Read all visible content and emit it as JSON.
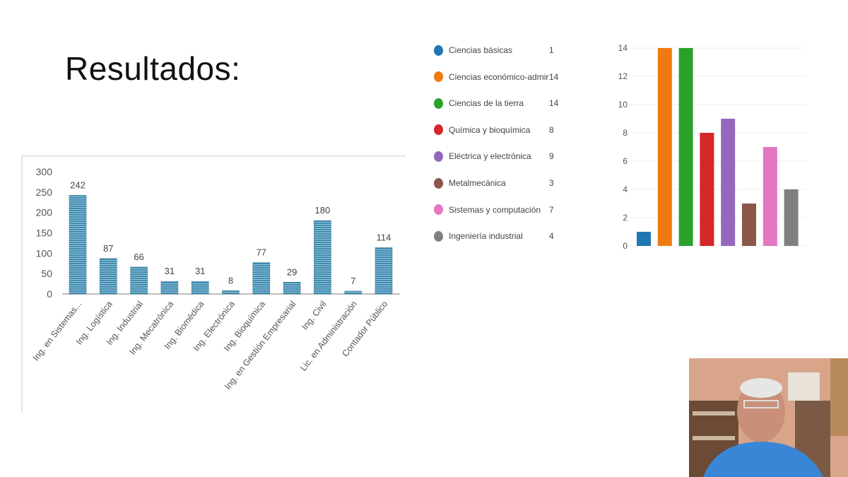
{
  "slide": {
    "title": "Resultados:"
  },
  "chart_data": [
    {
      "type": "bar",
      "categories": [
        "Ing. en Sistemas...",
        "Ing. Logística",
        "Ing. Industrial",
        "Ing. Mecatrónica",
        "Ing. Biomédica",
        "Ing. Electrónica",
        "Ing. Bioquímica",
        "Ing. en Gestión Empresarial",
        "Ing. Civil",
        "Lic. en Administración",
        "Contador Público"
      ],
      "values": [
        242,
        87,
        66,
        31,
        31,
        8,
        77,
        29,
        180,
        7,
        114
      ],
      "data_labels": [
        "242",
        "87",
        "66",
        "31",
        "31",
        "8",
        "77",
        "29",
        "180",
        "7",
        "114"
      ],
      "ylim": [
        0,
        300
      ],
      "yticks": [
        "0",
        "50",
        "100",
        "150",
        "200",
        "250",
        "300"
      ],
      "grid": false,
      "color": "#3f8bb0"
    },
    {
      "type": "bar",
      "categories": [
        "Ciencias básicas",
        "Ciencias económico-administrat...",
        "Ciencias de la tierra",
        "Química y bioquímica",
        "Eléctrica y electrónica",
        "Metalmecánica",
        "Sistemas y computación",
        "Ingeniería industrial"
      ],
      "values": [
        1,
        14,
        14,
        8,
        9,
        3,
        7,
        4
      ],
      "value_labels": [
        "1",
        "14",
        "14",
        "8",
        "9",
        "3",
        "7",
        "4"
      ],
      "colors": [
        "#1f77b4",
        "#ef7b10",
        "#2ca02c",
        "#d62728",
        "#9467bd",
        "#8c564b",
        "#e377c2",
        "#7f7f7f"
      ],
      "ylim": [
        0,
        14
      ],
      "yticks": [
        "0",
        "2",
        "4",
        "6",
        "8",
        "10",
        "12",
        "14"
      ],
      "grid": true,
      "legend": "left"
    }
  ]
}
